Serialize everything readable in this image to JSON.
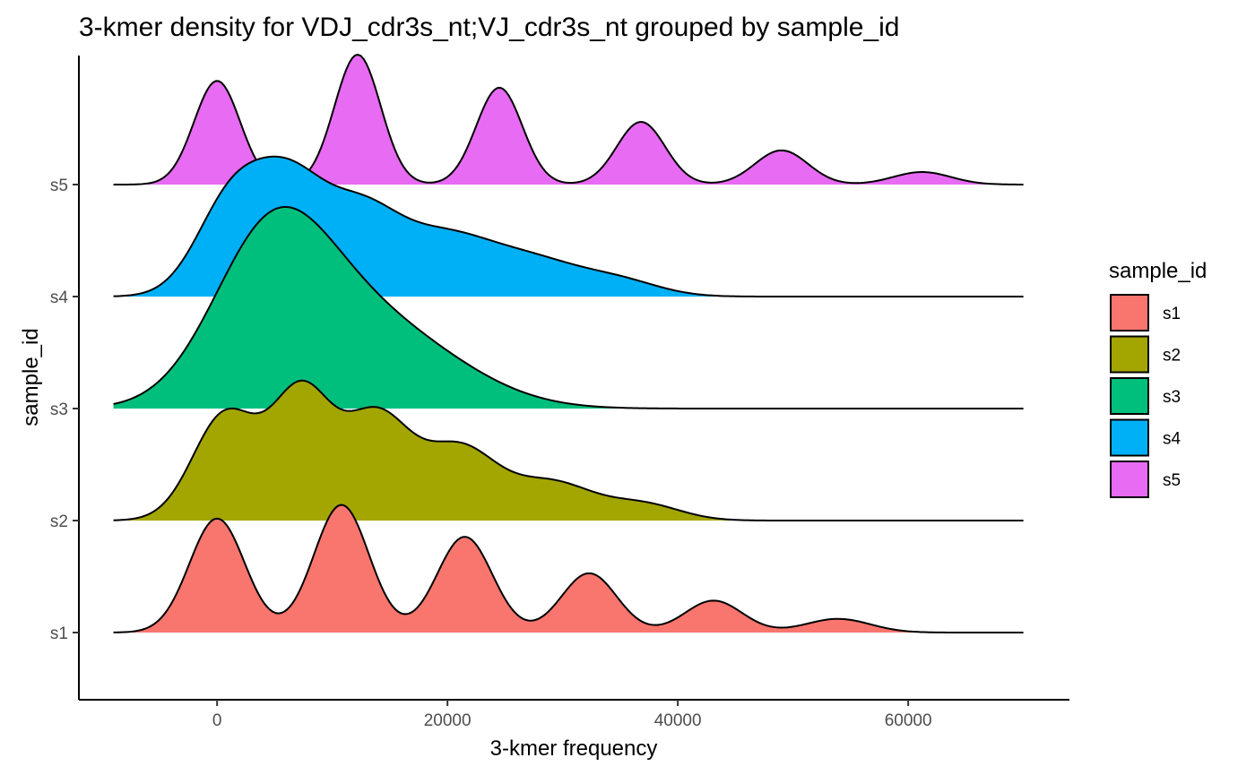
{
  "chart_data": {
    "type": "ridgeline",
    "title": "3-kmer density for VDJ_cdr3s_nt;VJ_cdr3s_nt grouped by sample_id",
    "xlabel": "3-kmer frequency",
    "ylabel": "sample_id",
    "x_ticks": [
      0,
      20000,
      40000,
      60000
    ],
    "x_tick_labels": [
      "0",
      "20000",
      "40000",
      "60000"
    ],
    "xlim": [
      -12000,
      74000
    ],
    "x_range": [
      -9000,
      70000
    ],
    "categories": [
      "s1",
      "s2",
      "s3",
      "s4",
      "s5"
    ],
    "legend": {
      "title": "sample_id",
      "position": "right"
    },
    "grid": false,
    "series": [
      {
        "name": "s1",
        "color": "#F8766D",
        "peak_fraction": 1.14,
        "components": [
          {
            "mu": 0,
            "sigma": 2400,
            "w": 1.0
          },
          {
            "mu": 10800,
            "sigma": 2400,
            "w": 1.12
          },
          {
            "mu": 21500,
            "sigma": 2400,
            "w": 0.84
          },
          {
            "mu": 32300,
            "sigma": 2400,
            "w": 0.52
          },
          {
            "mu": 43100,
            "sigma": 2500,
            "w": 0.28
          },
          {
            "mu": 53900,
            "sigma": 2800,
            "w": 0.12
          }
        ]
      },
      {
        "name": "s2",
        "color": "#A3A500",
        "peak_fraction": 1.25,
        "components": [
          {
            "mu": 700,
            "sigma": 2800,
            "w": 0.93
          },
          {
            "mu": 7300,
            "sigma": 2600,
            "w": 1.1
          },
          {
            "mu": 13800,
            "sigma": 2900,
            "w": 0.9
          },
          {
            "mu": 21000,
            "sigma": 3200,
            "w": 0.62
          },
          {
            "mu": 29000,
            "sigma": 3600,
            "w": 0.33
          },
          {
            "mu": 37000,
            "sigma": 3200,
            "w": 0.14
          }
        ]
      },
      {
        "name": "s3",
        "color": "#00BF7D",
        "peak_fraction": 1.8,
        "components": [
          {
            "mu": 4500,
            "sigma": 5000,
            "w": 1.0
          },
          {
            "mu": 11000,
            "sigma": 6500,
            "w": 0.55
          },
          {
            "mu": 19000,
            "sigma": 6000,
            "w": 0.18
          }
        ]
      },
      {
        "name": "s4",
        "color": "#00B0F6",
        "peak_fraction": 1.25,
        "components": [
          {
            "mu": 1200,
            "sigma": 3000,
            "w": 0.8
          },
          {
            "mu": 6300,
            "sigma": 3000,
            "w": 0.85
          },
          {
            "mu": 12300,
            "sigma": 3300,
            "w": 0.65
          },
          {
            "mu": 19500,
            "sigma": 4200,
            "w": 0.48
          },
          {
            "mu": 27500,
            "sigma": 4200,
            "w": 0.28
          },
          {
            "mu": 35000,
            "sigma": 3500,
            "w": 0.12
          }
        ]
      },
      {
        "name": "s5",
        "color": "#E76BF3",
        "peak_fraction": 1.16,
        "components": [
          {
            "mu": 0,
            "sigma": 2000,
            "w": 0.91
          },
          {
            "mu": 12200,
            "sigma": 2000,
            "w": 1.14
          },
          {
            "mu": 24500,
            "sigma": 2000,
            "w": 0.85
          },
          {
            "mu": 36800,
            "sigma": 2100,
            "w": 0.55
          },
          {
            "mu": 49000,
            "sigma": 2300,
            "w": 0.3
          },
          {
            "mu": 61200,
            "sigma": 2500,
            "w": 0.11
          }
        ]
      }
    ]
  }
}
